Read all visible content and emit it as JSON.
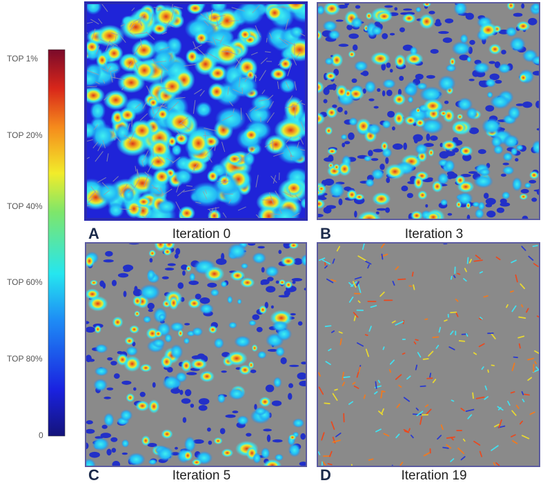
{
  "colorbar": {
    "labels": [
      "TOP 1%",
      "TOP 20%",
      "TOP 40%",
      "TOP 60%",
      "TOP 80%",
      "0"
    ]
  },
  "panels": [
    {
      "letter": "A",
      "caption": "Iteration 0"
    },
    {
      "letter": "B",
      "caption": "Iteration 3"
    },
    {
      "letter": "C",
      "caption": "Iteration 5"
    },
    {
      "letter": "D",
      "caption": "Iteration 19"
    }
  ]
}
